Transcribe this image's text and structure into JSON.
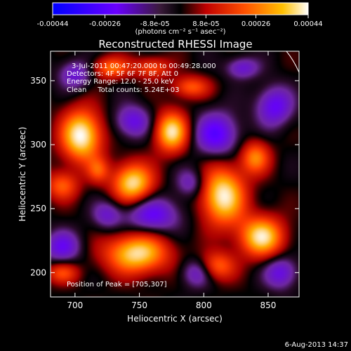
{
  "chart_data": {
    "type": "heatmap",
    "title": "Reconstructed RHESSI Image",
    "xlabel": "Heliocentric X (arcsec)",
    "ylabel": "Heliocentric Y (arcsec)",
    "xlim": [
      681,
      874
    ],
    "ylim": [
      181,
      373
    ],
    "xticks": [
      700,
      750,
      800,
      850
    ],
    "yticks": [
      200,
      250,
      300,
      350
    ],
    "colorbar": {
      "ticks": [
        "-0.00044",
        "-0.00026",
        "-8.8e-05",
        "8.8e-05",
        "0.00026",
        "0.00044"
      ],
      "range": [
        -0.00044,
        0.00044
      ],
      "unit_label": "(photons cm⁻² s⁻¹ asec⁻²)"
    },
    "annotations": [
      "3-Jul-2011 00:47:20.000 to 00:49:28.000",
      "Detectors: 4F 5F 6F 7F 8F, Att 0",
      "Energy Range: 12.0 - 25.0 keV",
      "Clean     Total counts: 5.24E+03"
    ],
    "peak_label": "Position of Peak = [705,307]",
    "peak": [
      705,
      307
    ],
    "blobs_pos": [
      [
        705,
        307,
        11,
        14,
        1.0
      ],
      [
        745,
        270,
        11,
        11,
        0.9
      ],
      [
        775,
        310,
        9,
        11,
        0.9
      ],
      [
        815,
        260,
        12,
        16,
        0.95
      ],
      [
        845,
        228,
        12,
        11,
        0.9
      ],
      [
        748,
        215,
        17,
        11,
        0.9
      ],
      [
        728,
        360,
        10,
        6,
        0.55
      ],
      [
        840,
        290,
        8,
        9,
        0.6
      ],
      [
        790,
        345,
        10,
        6,
        0.5
      ],
      [
        690,
        268,
        9,
        8,
        0.5
      ],
      [
        690,
        200,
        9,
        6,
        0.45
      ],
      [
        810,
        205,
        10,
        8,
        0.55
      ],
      [
        760,
        360,
        10,
        6,
        0.45
      ],
      [
        718,
        280,
        6,
        7,
        0.4
      ]
    ],
    "blobs_neg": [
      [
        810,
        308,
        12,
        12,
        1.0
      ],
      [
        745,
        318,
        10,
        9,
        0.8
      ],
      [
        855,
        330,
        10,
        11,
        0.9
      ],
      [
        690,
        220,
        10,
        9,
        0.8
      ],
      [
        760,
        245,
        15,
        10,
        0.9
      ],
      [
        860,
        200,
        9,
        9,
        0.8
      ],
      [
        830,
        360,
        9,
        6,
        0.7
      ],
      [
        795,
        200,
        9,
        8,
        0.7
      ],
      [
        700,
        355,
        9,
        8,
        0.7
      ],
      [
        725,
        245,
        8,
        8,
        0.6
      ],
      [
        790,
        270,
        8,
        8,
        0.6
      ]
    ]
  },
  "footer": {
    "date": "6-Aug-2013 14:37"
  }
}
